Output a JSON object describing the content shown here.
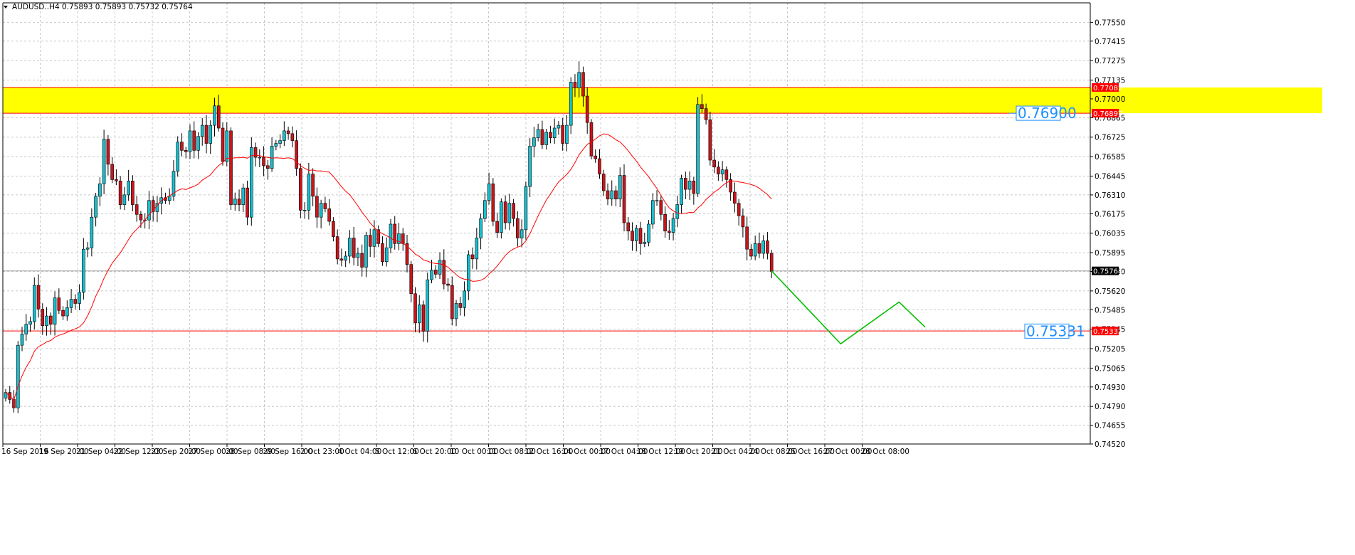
{
  "header": {
    "symbol_line": "AUDUSD..H4  0.75893 0.75893 0.75732 0.75764"
  },
  "chart_data": {
    "type": "candlestick",
    "symbol": "AUDUSD..",
    "timeframe": "H4",
    "ohlc": {
      "open": 0.75893,
      "high": 0.75893,
      "low": 0.75732,
      "close": 0.75764
    },
    "y_range": [
      0.7452,
      0.7769
    ],
    "y_tick_labels": [
      "0.77550",
      "0.77415",
      "0.77275",
      "0.77135",
      "0.77000",
      "0.76865",
      "0.76725",
      "0.76585",
      "0.76445",
      "0.76310",
      "0.76175",
      "0.76035",
      "0.75895",
      "0.75760",
      "0.75620",
      "0.75485",
      "0.75345",
      "0.75205",
      "0.75065",
      "0.74930",
      "0.74790",
      "0.74655",
      "0.74520"
    ],
    "x_tick_labels": [
      "16 Sep 2016",
      "19 Sep 20:00",
      "21 Sep 04:00",
      "22 Sep 12:00",
      "23 Sep 20:00",
      "27 Sep 00:00",
      "28 Sep 08:00",
      "29 Sep 16:00",
      "2 Oct 23:00",
      "4 Oct 04:00",
      "5 Oct 12:00",
      "6 Oct 20:00",
      "10 Oct 00:00",
      "11 Oct 08:00",
      "12 Oct 16:00",
      "14 Oct 00:00",
      "17 Oct 04:00",
      "18 Oct 12:00",
      "19 Oct 20:00",
      "21 Oct 04:00",
      "24 Oct 08:00",
      "25 Oct 16:00",
      "27 Oct 00:00",
      "28 Oct 08:00"
    ],
    "closes": [
      0.7489,
      0.7484,
      0.7478,
      0.7523,
      0.7531,
      0.7538,
      0.754,
      0.7566,
      0.7549,
      0.7537,
      0.7544,
      0.7538,
      0.7557,
      0.7548,
      0.7544,
      0.755,
      0.7556,
      0.7553,
      0.7561,
      0.7592,
      0.7593,
      0.7615,
      0.763,
      0.7639,
      0.7671,
      0.7653,
      0.7642,
      0.7641,
      0.7624,
      0.7631,
      0.7641,
      0.7624,
      0.7617,
      0.7613,
      0.7613,
      0.7627,
      0.7619,
      0.7625,
      0.7629,
      0.7627,
      0.763,
      0.7648,
      0.7669,
      0.7663,
      0.7662,
      0.7677,
      0.7663,
      0.7673,
      0.7681,
      0.7668,
      0.7681,
      0.7695,
      0.7679,
      0.7655,
      0.7677,
      0.7624,
      0.7628,
      0.7624,
      0.7636,
      0.7615,
      0.7665,
      0.7658,
      0.7658,
      0.7652,
      0.765,
      0.7666,
      0.7668,
      0.767,
      0.7677,
      0.7675,
      0.767,
      0.765,
      0.762,
      0.762,
      0.7646,
      0.763,
      0.7615,
      0.7625,
      0.7621,
      0.7612,
      0.7601,
      0.7585,
      0.7584,
      0.7587,
      0.76,
      0.7586,
      0.7589,
      0.7579,
      0.7602,
      0.7594,
      0.7606,
      0.7596,
      0.7583,
      0.7593,
      0.761,
      0.7596,
      0.7603,
      0.7596,
      0.7581,
      0.756,
      0.7539,
      0.7552,
      0.7533,
      0.757,
      0.7577,
      0.7574,
      0.7584,
      0.7567,
      0.7566,
      0.7542,
      0.7553,
      0.755,
      0.7562,
      0.7588,
      0.7585,
      0.76,
      0.7614,
      0.7627,
      0.7639,
      0.7612,
      0.7604,
      0.7626,
      0.7611,
      0.7625,
      0.7614,
      0.76,
      0.7606,
      0.7637,
      0.7666,
      0.7672,
      0.7678,
      0.7667,
      0.7676,
      0.7672,
      0.7679,
      0.7681,
      0.7668,
      0.7681,
      0.7712,
      0.7708,
      0.7719,
      0.7702,
      0.7683,
      0.7659,
      0.7657,
      0.7646,
      0.7634,
      0.7628,
      0.7634,
      0.7628,
      0.7645,
      0.7611,
      0.7605,
      0.7598,
      0.7607,
      0.7596,
      0.7597,
      0.761,
      0.7627,
      0.7627,
      0.7617,
      0.7605,
      0.7604,
      0.7614,
      0.7624,
      0.7643,
      0.7635,
      0.7641,
      0.7632,
      0.7696,
      0.7693,
      0.7685,
      0.7656,
      0.7651,
      0.7646,
      0.7649,
      0.7642,
      0.7633,
      0.7625,
      0.7616,
      0.7608,
      0.7592,
      0.7587,
      0.7596,
      0.7589,
      0.7598,
      0.7589,
      0.7576
    ],
    "moving_average": {
      "color": "#ff0000",
      "period": 20
    },
    "resistance_zone": {
      "top": 0.77082,
      "bottom": 0.76897,
      "fill": "#ffff00",
      "border": "#ff0000"
    },
    "support_line": {
      "level": 0.75332,
      "color": "#ff0000"
    },
    "current_price": 0.75764,
    "price_tags": {
      "resistance_top": "0.77082",
      "resistance_bottom": "0.76897",
      "current": "0.75764",
      "support": "0.75332"
    },
    "annotations": {
      "target_high": "0.76900",
      "target_low": "0.75331",
      "projection_color": "#00c000",
      "projection_path": [
        [
          0.0,
          0.75764
        ],
        [
          0.45,
          0.7524
        ],
        [
          0.83,
          0.7554
        ],
        [
          1.0,
          0.7536
        ]
      ]
    },
    "colors": {
      "bull": "#17becf",
      "bear": "#c8151c",
      "wick": "#000000",
      "grid": "#c8c8c8",
      "axis": "#000000"
    }
  }
}
